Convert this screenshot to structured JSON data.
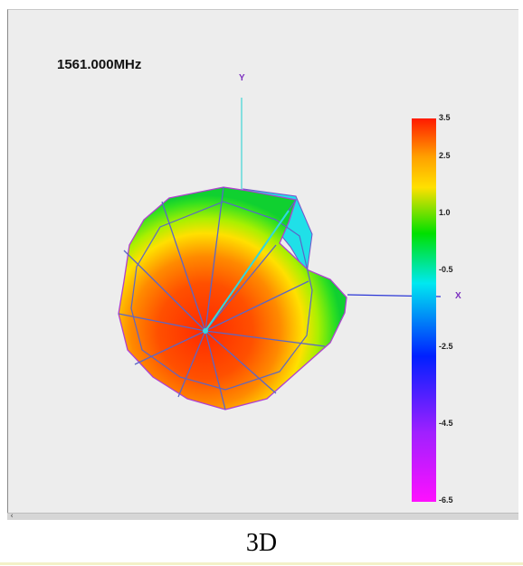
{
  "viewer": {
    "frequency_label": "1561.000MHz",
    "axes": {
      "y_label": "Y",
      "x_label": "X"
    },
    "colorbar": {
      "ticks": [
        "3.5",
        "2.5",
        "1.0",
        "-0.5",
        "-2.5",
        "-4.5",
        "-6.5"
      ],
      "colors": [
        "#ff1a00",
        "#ffe000",
        "#00e000",
        "#00e8f0",
        "#0020ff",
        "#a020ff",
        "#ff10ff"
      ]
    },
    "scrollbar": {
      "arrow_icon": "chevron-left-icon",
      "arrow_glyph": "‹"
    }
  },
  "caption": "3D"
}
